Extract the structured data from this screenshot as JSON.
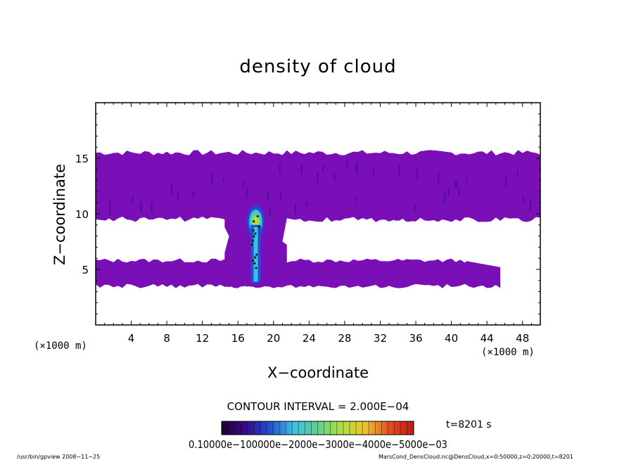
{
  "chart_data": {
    "type": "heatmap",
    "title": "density of cloud",
    "xlabel": "X−coordinate",
    "ylabel": "Z−coordinate",
    "x_unit_left": "(×1000 m)",
    "x_unit_right": "(×1000 m)",
    "xlim": [
      0,
      50
    ],
    "ylim": [
      0,
      20
    ],
    "xticks": [
      4,
      8,
      12,
      16,
      20,
      24,
      28,
      32,
      36,
      40,
      44,
      48
    ],
    "yticks": [
      5,
      10,
      15
    ],
    "grid": false,
    "contour_interval_text": "CONTOUR INTERVAL = 2.000E−04",
    "time_text": "t=8201 s",
    "colorbar": {
      "range": [
        0,
        0.0006
      ],
      "label_text": "0.10000e−100000e−2000e−3000e−4000e−5000e−03",
      "colors": [
        "#1e0030",
        "#3a0a8a",
        "#2050d0",
        "#40c0e0",
        "#60d090",
        "#b0e040",
        "#f0c030",
        "#e05020",
        "#c01818"
      ]
    },
    "regions": {
      "upper_layer": {
        "x": [
          0,
          50
        ],
        "z": [
          9.5,
          15.5
        ],
        "value": 0.0001,
        "color": "#7a0fb8"
      },
      "lower_layer": {
        "x": [
          0,
          45.5
        ],
        "z": [
          3.5,
          5.8
        ],
        "value": 0.0001,
        "color": "#7a0fb8"
      },
      "column": {
        "x": [
          14.5,
          21.5
        ],
        "z": [
          3.5,
          10
        ],
        "value": 0.0001,
        "color": "#7a0fb8"
      },
      "core": {
        "x": [
          17,
          19
        ],
        "z": [
          3.8,
          10.8
        ],
        "peak_value": 0.0005
      }
    },
    "footer_left": "/usr/bin/gpview   2008−11−25",
    "footer_right": "MarsCond_DensCloud.nc@DensCloud,x=0:50000,z=0:20000,t=8201"
  }
}
